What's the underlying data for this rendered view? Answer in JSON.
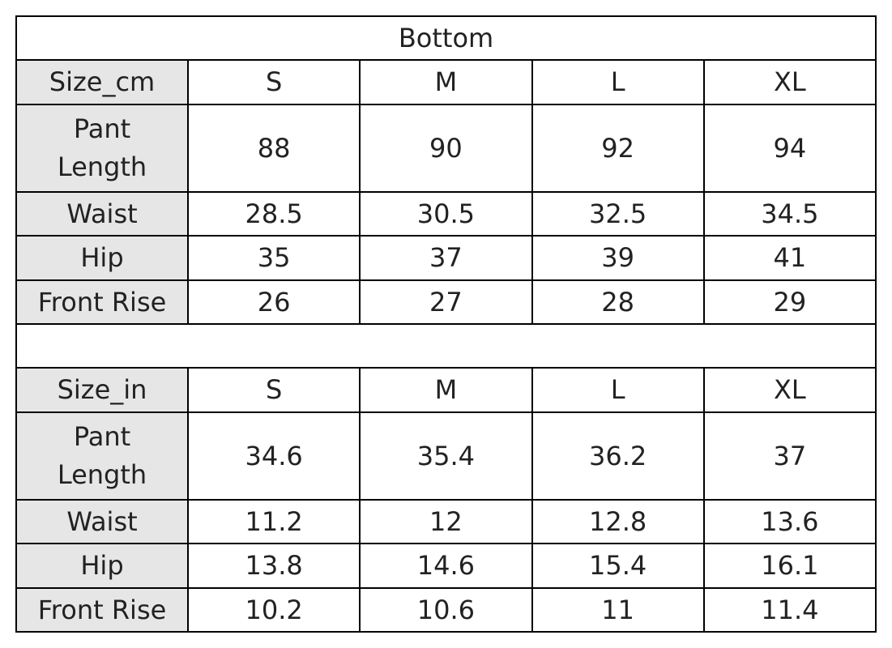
{
  "title": "Bottom",
  "tables": [
    {
      "header": [
        "Size_cm",
        "S",
        "M",
        "L",
        "XL"
      ],
      "rows": [
        [
          "Pant Length",
          "88",
          "90",
          "92",
          "94"
        ],
        [
          "Waist",
          "28.5",
          "30.5",
          "32.5",
          "34.5"
        ],
        [
          "Hip",
          "35",
          "37",
          "39",
          "41"
        ],
        [
          "Front Rise",
          "26",
          "27",
          "28",
          "29"
        ]
      ]
    },
    {
      "header": [
        "Size_in",
        "S",
        "M",
        "L",
        "XL"
      ],
      "rows": [
        [
          "Pant Length",
          "34.6",
          "35.4",
          "36.2",
          "37"
        ],
        [
          "Waist",
          "11.2",
          "12",
          "12.8",
          "13.6"
        ],
        [
          "Hip",
          "13.8",
          "14.6",
          "15.4",
          "16.1"
        ],
        [
          "Front Rise",
          "10.2",
          "10.6",
          "11",
          "11.4"
        ]
      ]
    }
  ]
}
